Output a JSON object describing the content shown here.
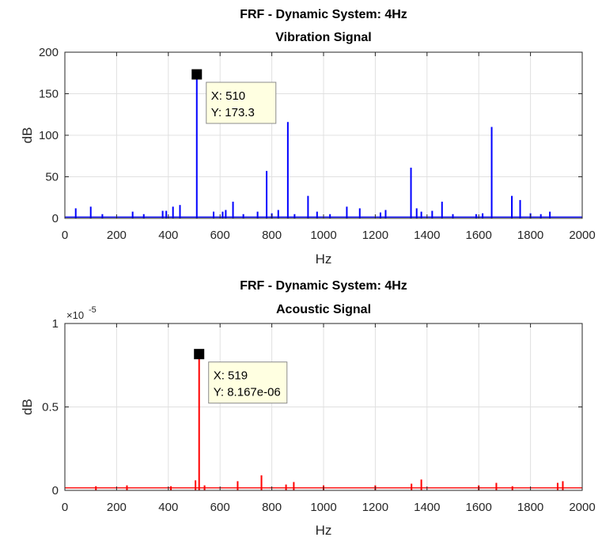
{
  "chart_data": [
    {
      "type": "line",
      "title": "FRF - Dynamic System: 4Hz",
      "subtitle": "Vibration Signal",
      "xlabel": "Hz",
      "ylabel": "dB",
      "xlim": [
        0,
        2000
      ],
      "ylim": [
        0,
        200
      ],
      "xticks": [
        0,
        200,
        400,
        600,
        800,
        1000,
        1200,
        1400,
        1600,
        1800,
        2000
      ],
      "yticks": [
        0,
        50,
        100,
        150,
        200
      ],
      "ytick_labels": [
        "0",
        "50",
        "100",
        "150",
        "200"
      ],
      "exponent_label": "",
      "grid": true,
      "color": "#0000ff",
      "baseline": 1.5,
      "peaks": [
        {
          "x": 42,
          "y": 12
        },
        {
          "x": 100,
          "y": 14
        },
        {
          "x": 145,
          "y": 5
        },
        {
          "x": 262,
          "y": 8
        },
        {
          "x": 305,
          "y": 5
        },
        {
          "x": 378,
          "y": 9
        },
        {
          "x": 392,
          "y": 9
        },
        {
          "x": 418,
          "y": 14
        },
        {
          "x": 445,
          "y": 16
        },
        {
          "x": 510,
          "y": 173.3
        },
        {
          "x": 575,
          "y": 8
        },
        {
          "x": 610,
          "y": 8
        },
        {
          "x": 622,
          "y": 10
        },
        {
          "x": 650,
          "y": 20
        },
        {
          "x": 690,
          "y": 5
        },
        {
          "x": 745,
          "y": 8
        },
        {
          "x": 780,
          "y": 57
        },
        {
          "x": 800,
          "y": 6
        },
        {
          "x": 825,
          "y": 10
        },
        {
          "x": 862,
          "y": 116
        },
        {
          "x": 888,
          "y": 5
        },
        {
          "x": 940,
          "y": 27
        },
        {
          "x": 975,
          "y": 8
        },
        {
          "x": 1025,
          "y": 5
        },
        {
          "x": 1090,
          "y": 14
        },
        {
          "x": 1140,
          "y": 12
        },
        {
          "x": 1220,
          "y": 7
        },
        {
          "x": 1240,
          "y": 10
        },
        {
          "x": 1338,
          "y": 61
        },
        {
          "x": 1360,
          "y": 12
        },
        {
          "x": 1378,
          "y": 8
        },
        {
          "x": 1420,
          "y": 9
        },
        {
          "x": 1458,
          "y": 20
        },
        {
          "x": 1500,
          "y": 5
        },
        {
          "x": 1590,
          "y": 5
        },
        {
          "x": 1615,
          "y": 6
        },
        {
          "x": 1650,
          "y": 110
        },
        {
          "x": 1728,
          "y": 27
        },
        {
          "x": 1760,
          "y": 22
        },
        {
          "x": 1800,
          "y": 6
        },
        {
          "x": 1840,
          "y": 5
        },
        {
          "x": 1875,
          "y": 8
        }
      ],
      "datatip": {
        "x": 510,
        "y": 173.3,
        "x_label": "X: 510",
        "y_label": "Y: 173.3"
      }
    },
    {
      "type": "line",
      "title": "FRF - Dynamic System: 4Hz",
      "subtitle": "Acoustic Signal",
      "xlabel": "Hz",
      "ylabel": "dB",
      "xlim": [
        0,
        2000
      ],
      "ylim": [
        0,
        1e-05
      ],
      "xticks": [
        0,
        200,
        400,
        600,
        800,
        1000,
        1200,
        1400,
        1600,
        1800,
        2000
      ],
      "yticks": [
        0,
        5e-06,
        1e-05
      ],
      "ytick_labels": [
        "0",
        "0.5",
        "1"
      ],
      "exponent_label": "×10",
      "exponent_power": "-5",
      "grid": true,
      "color": "#ff0000",
      "baseline": 1.5e-07,
      "peaks": [
        {
          "x": 120,
          "y": 2.5e-07
        },
        {
          "x": 240,
          "y": 3e-07
        },
        {
          "x": 410,
          "y": 2.5e-07
        },
        {
          "x": 505,
          "y": 6e-07
        },
        {
          "x": 519,
          "y": 8.167e-06
        },
        {
          "x": 540,
          "y": 3e-07
        },
        {
          "x": 668,
          "y": 5.5e-07
        },
        {
          "x": 760,
          "y": 9e-07
        },
        {
          "x": 855,
          "y": 3.5e-07
        },
        {
          "x": 885,
          "y": 5e-07
        },
        {
          "x": 1000,
          "y": 3e-07
        },
        {
          "x": 1200,
          "y": 3e-07
        },
        {
          "x": 1340,
          "y": 4e-07
        },
        {
          "x": 1378,
          "y": 6.5e-07
        },
        {
          "x": 1600,
          "y": 3e-07
        },
        {
          "x": 1668,
          "y": 4.5e-07
        },
        {
          "x": 1730,
          "y": 2.5e-07
        },
        {
          "x": 1905,
          "y": 4.5e-07
        },
        {
          "x": 1925,
          "y": 5.5e-07
        }
      ],
      "datatip": {
        "x": 519,
        "y": 8.167e-06,
        "x_label": "X: 519",
        "y_label": "Y: 8.167e-06"
      }
    }
  ]
}
